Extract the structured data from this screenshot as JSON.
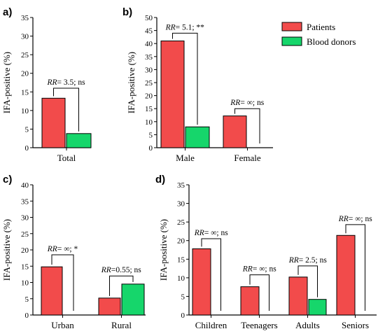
{
  "colors": {
    "patients": "#f24b4b",
    "donors": "#16d66b",
    "axis": "#000000"
  },
  "legend": [
    {
      "name": "Patients",
      "color": "#f24b4b"
    },
    {
      "name": "Blood donors",
      "color": "#16d66b"
    }
  ],
  "chart_data": [
    {
      "panel": "a)",
      "type": "bar",
      "ylabel": "IFA-positive (%)",
      "ylim": [
        0,
        35
      ],
      "yticks": [
        0,
        5,
        10,
        15,
        20,
        25,
        30,
        35
      ],
      "categories": [
        "Total"
      ],
      "series": [
        {
          "name": "Patients",
          "values": [
            13.3
          ]
        },
        {
          "name": "Blood donors",
          "values": [
            3.8
          ]
        }
      ],
      "annotations": [
        {
          "category": "Total",
          "rr": "RR",
          "text": "= 3.5; ns",
          "bracket_y": 16
        }
      ]
    },
    {
      "panel": "b)",
      "type": "bar",
      "ylabel": "IFA-positive (%)",
      "ylim": [
        0,
        50
      ],
      "yticks": [
        0,
        5,
        10,
        15,
        20,
        25,
        30,
        35,
        40,
        45,
        50
      ],
      "categories": [
        "Male",
        "Female"
      ],
      "series": [
        {
          "name": "Patients",
          "values": [
            41,
            12.2
          ]
        },
        {
          "name": "Blood donors",
          "values": [
            8,
            0
          ]
        }
      ],
      "annotations": [
        {
          "category": "Male",
          "rr": "RR",
          "text": "= 5.1; **",
          "bracket_y": 44
        },
        {
          "category": "Female",
          "rr": "RR",
          "text": "= ∞; ns",
          "bracket_y": 15
        }
      ]
    },
    {
      "panel": "c)",
      "type": "bar",
      "ylabel": "IFA-positive (%)",
      "ylim": [
        0,
        40
      ],
      "yticks": [
        0,
        5,
        10,
        15,
        20,
        25,
        30,
        35,
        40
      ],
      "categories": [
        "Urban",
        "Rural"
      ],
      "series": [
        {
          "name": "Patients",
          "values": [
            14.8,
            5.2
          ]
        },
        {
          "name": "Blood donors",
          "values": [
            0,
            9.5
          ]
        }
      ],
      "annotations": [
        {
          "category": "Urban",
          "rr": "RR",
          "text": "= ∞; *",
          "bracket_y": 18.5
        },
        {
          "category": "Rural",
          "rr": "RR",
          "text": "=0.55; ns",
          "bracket_y": 12
        }
      ]
    },
    {
      "panel": "d)",
      "type": "bar",
      "ylabel": "IFA-positive (%)",
      "ylim": [
        0,
        35
      ],
      "yticks": [
        0,
        5,
        10,
        15,
        20,
        25,
        30,
        35
      ],
      "categories": [
        "Children",
        "Teenagers",
        "Adults",
        "Seniors"
      ],
      "series": [
        {
          "name": "Patients",
          "values": [
            17.8,
            7.6,
            10.2,
            21.4
          ]
        },
        {
          "name": "Blood donors",
          "values": [
            0,
            0,
            4.2,
            0
          ]
        }
      ],
      "annotations": [
        {
          "category": "Children",
          "rr": "RR",
          "text": "= ∞; ns",
          "bracket_y": 20.5
        },
        {
          "category": "Teenagers",
          "rr": "RR",
          "text": "= ∞; ns",
          "bracket_y": 10.8
        },
        {
          "category": "Adults",
          "rr": "RR",
          "text": "= 2.5; ns",
          "bracket_y": 13.2
        },
        {
          "category": "Seniors",
          "rr": "RR",
          "text": "= ∞; ns",
          "bracket_y": 24.3
        }
      ]
    }
  ]
}
